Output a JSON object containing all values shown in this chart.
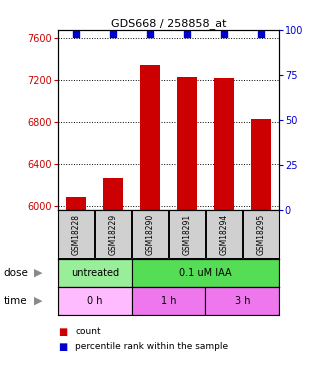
{
  "title": "GDS668 / 258858_at",
  "samples": [
    "GSM18228",
    "GSM18229",
    "GSM18290",
    "GSM18291",
    "GSM18294",
    "GSM18295"
  ],
  "bar_values": [
    6080,
    6270,
    7350,
    7230,
    7220,
    6830
  ],
  "percentile_values": [
    98,
    98,
    98,
    98,
    98,
    98
  ],
  "bar_color": "#cc0000",
  "dot_color": "#0000cc",
  "ylim_left": [
    5960,
    7680
  ],
  "ylim_right": [
    0,
    100
  ],
  "yticks_left": [
    6000,
    6400,
    6800,
    7200,
    7600
  ],
  "yticks_right": [
    0,
    25,
    50,
    75,
    100
  ],
  "dose_labels": [
    {
      "text": "untreated",
      "span": [
        0,
        2
      ]
    },
    {
      "text": "0.1 uM IAA",
      "span": [
        2,
        6
      ]
    }
  ],
  "dose_colors": [
    "#99ee99",
    "#55dd55"
  ],
  "time_labels": [
    {
      "text": "0 h",
      "span": [
        0,
        2
      ]
    },
    {
      "text": "1 h",
      "span": [
        2,
        4
      ]
    },
    {
      "text": "3 h",
      "span": [
        4,
        6
      ]
    }
  ],
  "time_colors": [
    "#ffbbff",
    "#ee77ee",
    "#ee77ee"
  ],
  "dose_row_label": "dose",
  "time_row_label": "time",
  "legend_count_color": "#cc0000",
  "legend_percentile_color": "#0000cc",
  "legend_count_text": "count",
  "legend_percentile_text": "percentile rank within the sample"
}
